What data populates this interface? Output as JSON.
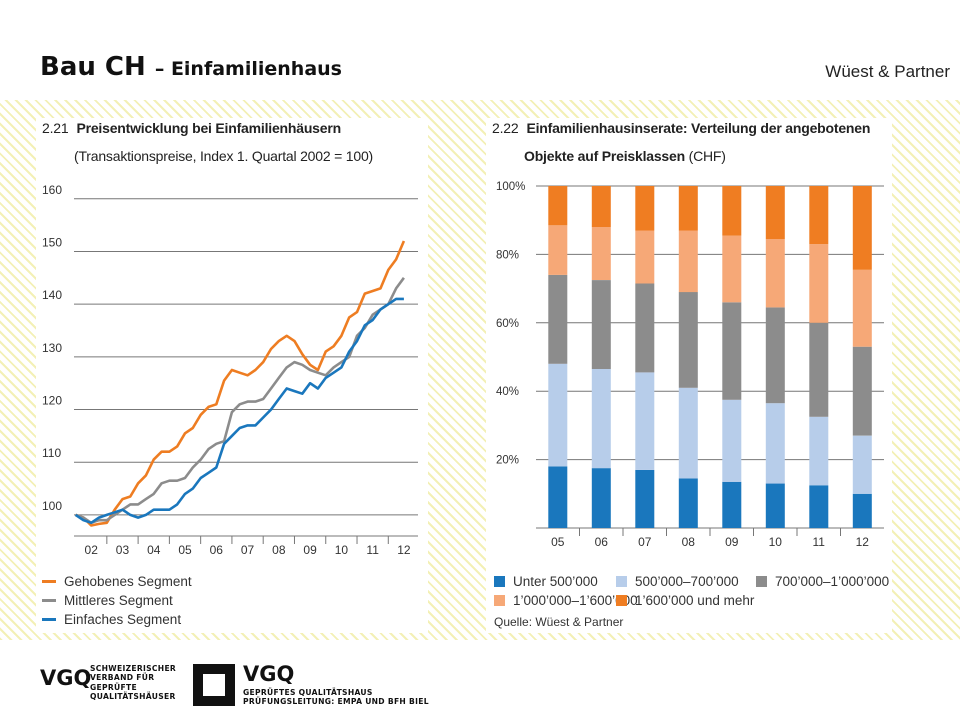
{
  "header": {
    "title": "Bau CH",
    "subtitle": "– Einfamilienhaus",
    "brand": "Wüest & Partner"
  },
  "chart_data": [
    {
      "type": "line",
      "number": "2.21",
      "title": "Preisentwicklung bei Einfamilienhäusern",
      "subtitle": "(Transaktionspreise, Index 1. Quartal 2002 = 100)",
      "x_tick_labels": [
        "02",
        "03",
        "04",
        "05",
        "06",
        "07",
        "08",
        "09",
        "10",
        "11",
        "12"
      ],
      "ylim": [
        96,
        163
      ],
      "y_ticks": [
        100,
        110,
        120,
        130,
        140,
        150,
        160
      ],
      "grid": true,
      "legend_position": "bottom-left",
      "x": [
        2002.0,
        2002.25,
        2002.5,
        2002.75,
        2003.0,
        2003.25,
        2003.5,
        2003.75,
        2004.0,
        2004.25,
        2004.5,
        2004.75,
        2005.0,
        2005.25,
        2005.5,
        2005.75,
        2006.0,
        2006.25,
        2006.5,
        2006.75,
        2007.0,
        2007.25,
        2007.5,
        2007.75,
        2008.0,
        2008.25,
        2008.5,
        2008.75,
        2009.0,
        2009.25,
        2009.5,
        2009.75,
        2010.0,
        2010.25,
        2010.5,
        2010.75,
        2011.0,
        2011.25,
        2011.5,
        2011.75,
        2012.0,
        2012.25,
        2012.5
      ],
      "series": [
        {
          "name": "Gehobenes Segment",
          "color": "#ee7d22",
          "values": [
            100,
            99.5,
            98,
            98.3,
            98.5,
            101,
            103,
            103.5,
            106,
            107.5,
            110.5,
            112,
            112,
            113,
            115.5,
            116.5,
            119,
            120.5,
            121,
            125.5,
            127.5,
            127,
            126.5,
            127.5,
            129,
            131.5,
            133,
            134,
            133,
            130.5,
            128.5,
            127.5,
            131,
            132,
            134,
            137.5,
            138.5,
            142,
            142.5,
            143,
            146.5,
            148.5,
            152
          ]
        },
        {
          "name": "Mittleres Segment",
          "color": "#8c8c8c",
          "values": [
            100,
            99.5,
            98.5,
            99,
            99,
            100,
            101,
            102,
            102,
            103,
            104,
            106,
            106.5,
            106.5,
            107,
            109,
            110.5,
            112.5,
            113.5,
            114,
            119.5,
            121,
            121.5,
            121.5,
            122,
            124,
            126,
            128,
            129,
            128.5,
            127.5,
            127,
            126.5,
            128,
            129,
            130,
            134,
            135.5,
            138,
            139,
            140,
            143,
            145
          ]
        },
        {
          "name": "Einfaches Segment",
          "color": "#1a77bd",
          "values": [
            100,
            99,
            98.5,
            99.5,
            100,
            100.5,
            101,
            100,
            99.5,
            100,
            101,
            101,
            101,
            102,
            104,
            105,
            107,
            108,
            109,
            113.5,
            115,
            116.5,
            117,
            117,
            118.5,
            120,
            122,
            124,
            123.5,
            123,
            125,
            124,
            126,
            127,
            128,
            131,
            133,
            136,
            137,
            139,
            140,
            141,
            141
          ]
        }
      ]
    },
    {
      "type": "bar",
      "stacked": true,
      "number": "2.22",
      "title": "Einfamilienhausinserate: Verteilung der angebotenen Objekte auf Preisklassen (CHF)",
      "title_line1": "Einfamilienhausinserate: Verteilung der angebotenen",
      "title_line2_bold": "Objekte auf Preisklassen",
      "title_line2_rest": " (CHF)",
      "categories": [
        "05",
        "06",
        "07",
        "08",
        "09",
        "10",
        "11",
        "12"
      ],
      "y_tick_labels": [
        "20%",
        "40%",
        "60%",
        "80%",
        "100%"
      ],
      "ylim": [
        0,
        100
      ],
      "grid": true,
      "legend_position": "bottom",
      "series": [
        {
          "name": "Unter 500’000",
          "color": "#1a77bd",
          "values": [
            18,
            17.5,
            17,
            14.5,
            13.5,
            13,
            12.5,
            10
          ]
        },
        {
          "name": "500’000–700’000",
          "color": "#b7cdea",
          "values": [
            30,
            29,
            28.5,
            26.5,
            24,
            23.5,
            20,
            17
          ]
        },
        {
          "name": "700’000–1’000’000",
          "color": "#8c8c8c",
          "values": [
            26,
            26,
            26,
            28,
            28.5,
            28,
            27.5,
            26
          ]
        },
        {
          "name": "1’000’000–1’600’000",
          "color": "#f6a877",
          "values": [
            14.5,
            15.5,
            15.5,
            18,
            19.5,
            20,
            23,
            22.5
          ]
        },
        {
          "name": "1’600’000 und mehr",
          "color": "#ef7d22",
          "values": [
            11.5,
            12,
            13,
            13,
            14.5,
            15.5,
            17,
            24.5
          ]
        }
      ],
      "source": "Quelle: Wüest & Partner"
    }
  ],
  "footer": {
    "logo1_abbr": "VGQ",
    "logo1_text": "SCHWEIZERISCHER\nVERBAND FÜR\nGEPRÜFTE\nQUALITÄTSHÄUSER",
    "logo2_abbr": "VGQ",
    "logo2_text": "GEPRÜFTES QUALITÄTSHAUS\nPRÜFUNGSLEITUNG: EMPA UND BFH BIEL"
  }
}
